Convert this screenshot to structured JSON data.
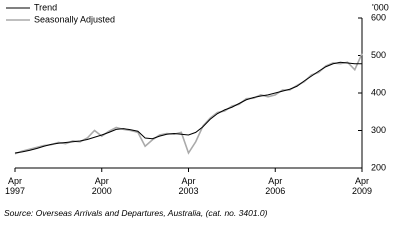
{
  "chart_data": {
    "type": "line",
    "unit_label": "'000",
    "source": "Source: Overseas Arrivals and Departures, Australia, (cat. no. 3401.0)",
    "legend": "top-left",
    "value_axis_side": "right",
    "x": [
      "1997-04",
      "1997-07",
      "1997-10",
      "1998-01",
      "1998-04",
      "1998-07",
      "1998-10",
      "1999-01",
      "1999-04",
      "1999-07",
      "1999-10",
      "2000-01",
      "2000-04",
      "2000-07",
      "2000-10",
      "2001-01",
      "2001-04",
      "2001-07",
      "2001-10",
      "2002-01",
      "2002-04",
      "2002-07",
      "2002-10",
      "2003-01",
      "2003-04",
      "2003-07",
      "2003-10",
      "2004-01",
      "2004-04",
      "2004-07",
      "2004-10",
      "2005-01",
      "2005-04",
      "2005-07",
      "2005-10",
      "2006-01",
      "2006-04",
      "2006-07",
      "2006-10",
      "2007-01",
      "2007-04",
      "2007-07",
      "2007-10",
      "2008-01",
      "2008-04",
      "2008-07",
      "2008-10",
      "2009-01",
      "2009-04"
    ],
    "xlim": [
      "1997-04",
      "2009-04"
    ],
    "xticks": [
      {
        "value": "1997-04",
        "label": "Apr\n1997"
      },
      {
        "value": "2000-04",
        "label": "Apr\n2000"
      },
      {
        "value": "2003-04",
        "label": "Apr\n2003"
      },
      {
        "value": "2006-04",
        "label": "Apr\n2006"
      },
      {
        "value": "2009-04",
        "label": "Apr\n2009"
      }
    ],
    "ylim": [
      200,
      600
    ],
    "yticks": [
      200,
      300,
      400,
      500,
      600
    ],
    "series": [
      {
        "name": "Trend",
        "color": "#000000",
        "values": [
          240,
          243,
          247,
          252,
          258,
          263,
          266,
          268,
          270,
          272,
          276,
          282,
          288,
          295,
          303,
          305,
          302,
          298,
          280,
          278,
          285,
          290,
          292,
          290,
          288,
          295,
          310,
          330,
          345,
          355,
          362,
          372,
          382,
          388,
          392,
          395,
          400,
          405,
          410,
          418,
          432,
          445,
          458,
          470,
          478,
          482,
          480,
          478,
          478
        ]
      },
      {
        "name": "Seasonally Adjusted",
        "color": "#aaaaaa",
        "values": [
          238,
          245,
          250,
          255,
          260,
          262,
          268,
          265,
          272,
          270,
          280,
          300,
          285,
          298,
          308,
          303,
          300,
          295,
          258,
          275,
          288,
          292,
          290,
          295,
          240,
          270,
          312,
          333,
          348,
          352,
          365,
          370,
          385,
          386,
          395,
          390,
          395,
          408,
          408,
          420,
          430,
          448,
          455,
          472,
          480,
          478,
          482,
          462,
          505
        ]
      }
    ]
  }
}
